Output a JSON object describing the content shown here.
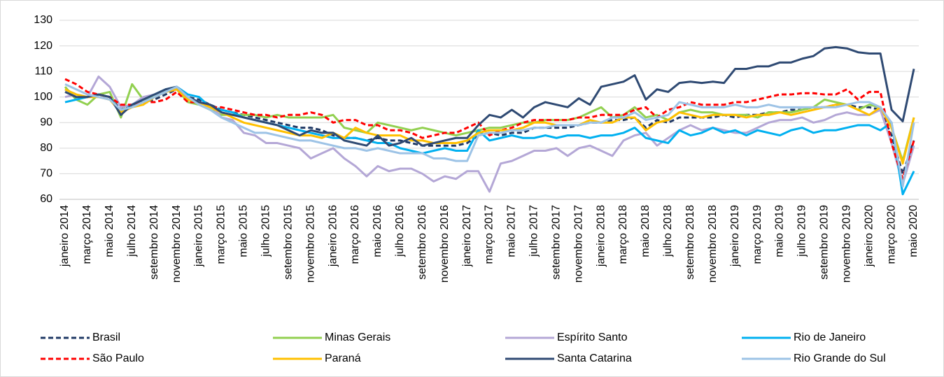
{
  "chart_data": {
    "type": "line",
    "categories": [
      "janeiro 2014",
      null,
      "março 2014",
      null,
      "maio 2014",
      null,
      "julho 2014",
      null,
      "setembro 2014",
      null,
      "novembro 2014",
      null,
      "janeiro 2015",
      null,
      "março 2015",
      null,
      "maio 2015",
      null,
      "julho 2015",
      null,
      "setembro 2015",
      null,
      "novembro 2015",
      null,
      "janeiro 2016",
      null,
      "março 2016",
      null,
      "maio 2016",
      null,
      "julho 2016",
      null,
      "setembro 2016",
      null,
      "novembro 2016",
      null,
      "janeiro 2017",
      null,
      "março 2017",
      null,
      "maio 2017",
      null,
      "julho 2017",
      null,
      "setembro 2017",
      null,
      "novembro 2017",
      null,
      "janeiro 2018",
      null,
      "março 2018",
      null,
      "maio 2018",
      null,
      "julho 2018",
      null,
      "setembro 2018",
      null,
      "novembro 2018",
      null,
      "janeiro 2019",
      null,
      "março 2019",
      null,
      "maio 2019",
      null,
      "julho 2019",
      null,
      "setembro 2019",
      null,
      "novembro 2019",
      null,
      "janeiro 2020",
      null,
      "março 2020",
      null,
      "maio 2020"
    ],
    "ylim": [
      60,
      130
    ],
    "yticks": [
      60,
      70,
      80,
      90,
      100,
      110,
      120,
      130
    ],
    "grid": true,
    "legend": "bottom",
    "series": [
      {
        "name": "Brasil",
        "color": "#1f3864",
        "dashed": true,
        "values": [
          103,
          101,
          100,
          101,
          100,
          95,
          97,
          98,
          99,
          101,
          103,
          100,
          99,
          97,
          95,
          94,
          93,
          92,
          91,
          90,
          89,
          88,
          88,
          87,
          85,
          84,
          84,
          83,
          84,
          83,
          83,
          82,
          81,
          81,
          81,
          81,
          82,
          85,
          86,
          85,
          86,
          86,
          88,
          88,
          88,
          88,
          89,
          90,
          90,
          91,
          91,
          92,
          88,
          91,
          90,
          92,
          92,
          92,
          92,
          93,
          92,
          93,
          93,
          94,
          94,
          95,
          95,
          96,
          96,
          97,
          97,
          96,
          96,
          95,
          85,
          70,
          83
        ]
      },
      {
        "name": "Minas Gerais",
        "color": "#92d050",
        "dashed": false,
        "values": [
          104,
          99,
          97,
          101,
          102,
          92,
          105,
          99,
          100,
          102,
          103,
          98,
          97,
          95,
          93,
          93,
          93,
          93,
          92,
          93,
          92,
          92,
          92,
          92,
          93,
          88,
          87,
          86,
          90,
          89,
          88,
          87,
          88,
          87,
          86,
          85,
          86,
          87,
          88,
          88,
          89,
          90,
          90,
          91,
          91,
          91,
          92,
          94,
          96,
          92,
          93,
          96,
          92,
          93,
          91,
          94,
          95,
          94,
          94,
          93,
          93,
          93,
          92,
          94,
          94,
          94,
          95,
          96,
          99,
          98,
          97,
          95,
          97,
          96,
          88,
          75,
          92
        ]
      },
      {
        "name": "Espírito Santo",
        "color": "#b4a7d6",
        "dashed": false,
        "values": [
          100,
          101,
          100,
          108,
          104,
          96,
          97,
          100,
          101,
          102,
          103,
          99,
          98,
          97,
          92,
          91,
          86,
          85,
          82,
          82,
          81,
          80,
          76,
          78,
          80,
          76,
          73,
          69,
          73,
          71,
          72,
          72,
          70,
          67,
          69,
          68,
          71,
          71,
          63,
          74,
          75,
          77,
          79,
          79,
          80,
          77,
          80,
          81,
          79,
          77,
          83,
          85,
          86,
          81,
          84,
          87,
          89,
          87,
          88,
          87,
          86,
          86,
          88,
          90,
          91,
          91,
          92,
          90,
          91,
          93,
          94,
          93,
          93,
          95,
          82,
          66,
          81
        ]
      },
      {
        "name": "Rio de Janeiro",
        "color": "#00b0f0",
        "dashed": false,
        "values": [
          98,
          99,
          100,
          101,
          100,
          94,
          97,
          99,
          101,
          103,
          104,
          101,
          100,
          96,
          95,
          94,
          92,
          91,
          90,
          89,
          88,
          87,
          86,
          85,
          84,
          84,
          84,
          83,
          82,
          82,
          80,
          79,
          78,
          79,
          80,
          79,
          79,
          87,
          83,
          84,
          85,
          84,
          84,
          85,
          84,
          85,
          85,
          84,
          85,
          85,
          86,
          88,
          84,
          83,
          82,
          87,
          85,
          86,
          88,
          86,
          87,
          85,
          87,
          86,
          85,
          87,
          88,
          86,
          87,
          87,
          88,
          89,
          89,
          87,
          90,
          62,
          71
        ]
      },
      {
        "name": "São Paulo",
        "color": "#ff0000",
        "dashed": true,
        "values": [
          107,
          105,
          102,
          101,
          100,
          97,
          97,
          98,
          98,
          99,
          102,
          98,
          98,
          96,
          96,
          95,
          94,
          93,
          93,
          92,
          93,
          93,
          94,
          93,
          90,
          91,
          91,
          89,
          89,
          87,
          87,
          86,
          84,
          85,
          86,
          86,
          88,
          90,
          85,
          87,
          88,
          90,
          91,
          91,
          91,
          91,
          92,
          92,
          93,
          93,
          93,
          95,
          96,
          92,
          95,
          96,
          98,
          97,
          97,
          97,
          98,
          98,
          99,
          100,
          101,
          101,
          101.5,
          101.5,
          101,
          101,
          103,
          99,
          102,
          102,
          82,
          68,
          83
        ]
      },
      {
        "name": "Paraná",
        "color": "#ffc000",
        "dashed": false,
        "values": [
          103,
          101,
          100,
          100,
          99,
          94,
          96,
          97,
          100,
          102,
          103,
          99,
          98,
          96,
          94,
          92,
          90,
          89,
          88,
          87,
          86,
          85,
          85,
          84,
          86,
          84,
          88,
          86,
          85,
          85,
          85,
          83,
          83,
          82,
          82,
          82,
          83,
          86,
          87,
          87,
          87,
          88,
          90,
          90,
          89,
          89,
          89,
          91,
          90,
          90,
          92,
          92,
          87,
          90,
          91,
          94,
          93,
          92,
          93,
          93,
          93,
          92,
          93,
          93,
          94,
          93,
          94,
          95,
          96,
          97,
          97,
          95,
          93,
          96,
          88,
          74,
          92
        ]
      },
      {
        "name": "Santa Catarina",
        "color": "#2f4a73",
        "dashed": false,
        "values": [
          102,
          100,
          100,
          101,
          100,
          93,
          97,
          99,
          101,
          103,
          104,
          100,
          98,
          97,
          94,
          93,
          92,
          91,
          90,
          89,
          87,
          85,
          87,
          86,
          86,
          83,
          82,
          81,
          85,
          81,
          82,
          84,
          81,
          82,
          83,
          84,
          84,
          89,
          93,
          92,
          95,
          92,
          96,
          98,
          97,
          96,
          99.5,
          97,
          104,
          105,
          106,
          108.5,
          99,
          103,
          102,
          105.5,
          106,
          105.5,
          106,
          105.5,
          111,
          111,
          112,
          112,
          113.5,
          113.5,
          115,
          116,
          119,
          119.5,
          119,
          117.5,
          117,
          117,
          95,
          90.5,
          111
        ]
      },
      {
        "name": "Rio Grande do Sul",
        "color": "#9dc3e6",
        "dashed": false,
        "values": [
          105,
          103,
          101,
          100,
          99,
          95,
          96,
          98,
          100,
          102,
          104,
          100,
          97,
          95,
          92,
          90,
          88,
          86,
          86,
          85,
          84,
          83,
          83,
          82,
          81,
          80,
          80,
          79,
          80,
          79,
          78,
          78,
          78,
          76,
          76,
          75,
          75,
          85,
          86,
          86,
          87,
          87,
          88,
          88,
          89,
          89,
          89,
          90,
          90,
          92,
          92,
          94,
          91,
          92,
          93,
          98,
          97,
          96,
          96,
          96,
          97,
          96,
          96,
          97,
          96,
          96,
          96,
          96,
          96,
          96,
          97,
          98,
          98,
          96,
          90,
          65,
          90
        ]
      }
    ]
  }
}
